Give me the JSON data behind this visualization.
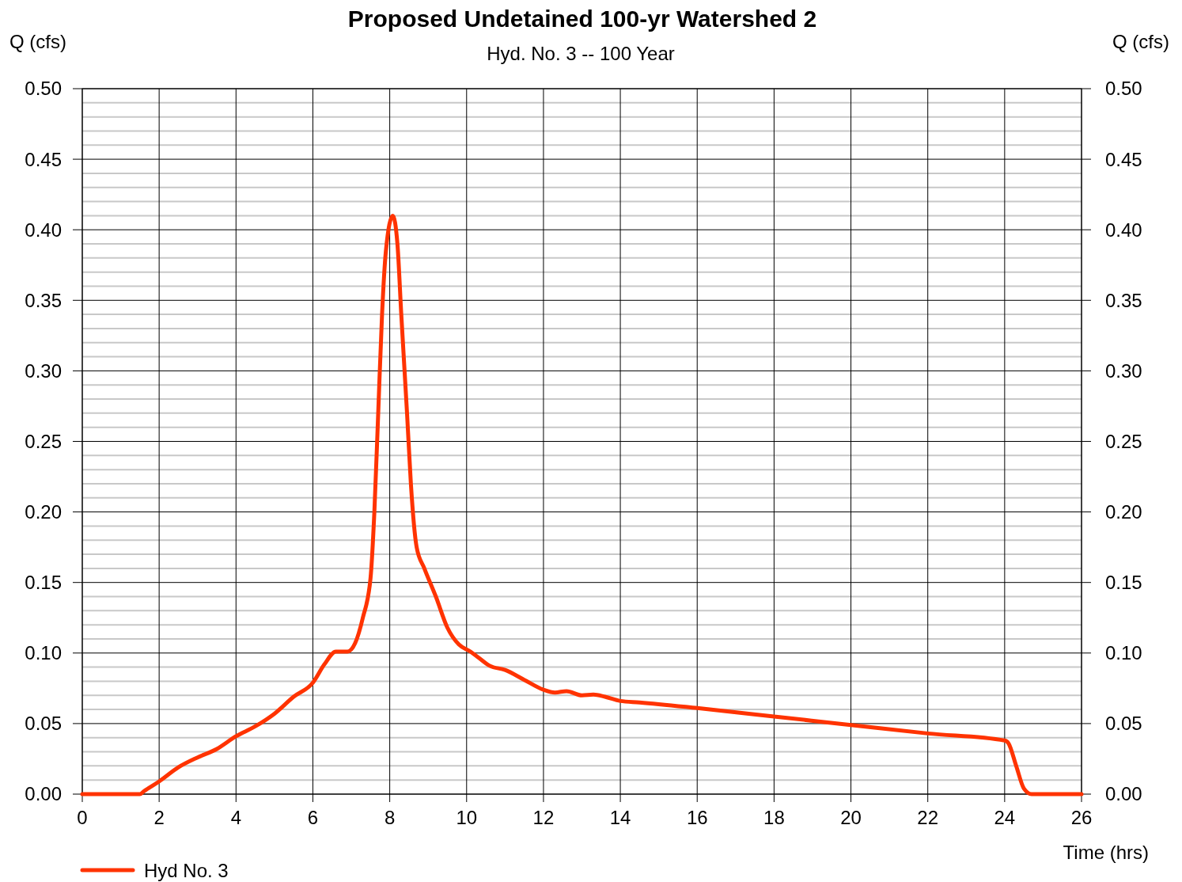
{
  "chart_data": {
    "type": "line",
    "title": "Proposed Undetained 100-yr Watershed 2",
    "subtitle": "Hyd. No. 3 -- 100 Year",
    "xlabel": "Time (hrs)",
    "ylabel": "Q (cfs)",
    "y2label": "Q (cfs)",
    "x": [
      0,
      1.5,
      1.6,
      2,
      2.5,
      3,
      3.5,
      4,
      4.5,
      5,
      5.5,
      6,
      6.3,
      6.6,
      6.9,
      7.1,
      7.3,
      7.5,
      7.6,
      7.7,
      7.8,
      7.9,
      8.08,
      8.2,
      8.3,
      8.45,
      8.55,
      8.7,
      8.9,
      9.2,
      9.5,
      9.8,
      10.1,
      10.3,
      10.6,
      11,
      11.5,
      12,
      12.3,
      12.6,
      13,
      13.3,
      13.6,
      14,
      14.5,
      16,
      18,
      20,
      22,
      24,
      24.1,
      24.3,
      24.5,
      24.7,
      26
    ],
    "series": [
      {
        "name": "Hyd No. 3",
        "color": "#ff3300",
        "values": [
          0,
          0,
          0.002,
          0.009,
          0.019,
          0.026,
          0.032,
          0.041,
          0.048,
          0.057,
          0.069,
          0.079,
          0.092,
          0.101,
          0.101,
          0.107,
          0.125,
          0.153,
          0.2,
          0.27,
          0.34,
          0.385,
          0.41,
          0.39,
          0.34,
          0.27,
          0.22,
          0.175,
          0.16,
          0.14,
          0.118,
          0.106,
          0.101,
          0.097,
          0.091,
          0.088,
          0.081,
          0.074,
          0.072,
          0.073,
          0.07,
          0.0705,
          0.069,
          0.066,
          0.065,
          0.061,
          0.055,
          0.049,
          0.043,
          0.038,
          0.036,
          0.02,
          0.004,
          0,
          0
        ]
      }
    ],
    "xlim": [
      0,
      26
    ],
    "xticks": [
      0,
      2,
      4,
      6,
      8,
      10,
      12,
      14,
      16,
      18,
      20,
      22,
      24,
      26
    ],
    "ylim": [
      0,
      0.5
    ],
    "yticks": [
      {
        "value": 0,
        "label": "0.00"
      },
      {
        "value": 0.01,
        "label": null
      },
      {
        "value": 0.02,
        "label": null
      },
      {
        "value": 0.03,
        "label": null
      },
      {
        "value": 0.04,
        "label": null
      },
      {
        "value": 0.05,
        "label": "0.05"
      },
      {
        "value": 0.06,
        "label": null
      },
      {
        "value": 0.07,
        "label": null
      },
      {
        "value": 0.08,
        "label": null
      },
      {
        "value": 0.09,
        "label": null
      },
      {
        "value": 0.1,
        "label": "0.10"
      },
      {
        "value": 0.11,
        "label": null
      },
      {
        "value": 0.12,
        "label": null
      },
      {
        "value": 0.13,
        "label": null
      },
      {
        "value": 0.14,
        "label": null
      },
      {
        "value": 0.15,
        "label": "0.15"
      },
      {
        "value": 0.16,
        "label": null
      },
      {
        "value": 0.17,
        "label": null
      },
      {
        "value": 0.18,
        "label": null
      },
      {
        "value": 0.19,
        "label": null
      },
      {
        "value": 0.2,
        "label": "0.20"
      },
      {
        "value": 0.21,
        "label": null
      },
      {
        "value": 0.22,
        "label": null
      },
      {
        "value": 0.23,
        "label": null
      },
      {
        "value": 0.24,
        "label": null
      },
      {
        "value": 0.25,
        "label": "0.25"
      },
      {
        "value": 0.26,
        "label": null
      },
      {
        "value": 0.27,
        "label": null
      },
      {
        "value": 0.28,
        "label": null
      },
      {
        "value": 0.29,
        "label": null
      },
      {
        "value": 0.3,
        "label": "0.30"
      },
      {
        "value": 0.31,
        "label": null
      },
      {
        "value": 0.32,
        "label": null
      },
      {
        "value": 0.33,
        "label": null
      },
      {
        "value": 0.34,
        "label": null
      },
      {
        "value": 0.35,
        "label": "0.35"
      },
      {
        "value": 0.36,
        "label": null
      },
      {
        "value": 0.37,
        "label": null
      },
      {
        "value": 0.38,
        "label": null
      },
      {
        "value": 0.39,
        "label": null
      },
      {
        "value": 0.4,
        "label": "0.40"
      },
      {
        "value": 0.41,
        "label": null
      },
      {
        "value": 0.42,
        "label": null
      },
      {
        "value": 0.43,
        "label": null
      },
      {
        "value": 0.44,
        "label": null
      },
      {
        "value": 0.45,
        "label": "0.45"
      },
      {
        "value": 0.46,
        "label": null
      },
      {
        "value": 0.47,
        "label": null
      },
      {
        "value": 0.48,
        "label": null
      },
      {
        "value": 0.49,
        "label": null
      },
      {
        "value": 0.5,
        "label": "0.50"
      }
    ],
    "y2lim": [
      0,
      0.5
    ],
    "y2ticks": [
      {
        "value": 0,
        "label": "0.00"
      },
      {
        "value": 0.05,
        "label": "0.05"
      },
      {
        "value": 0.1,
        "label": "0.10"
      },
      {
        "value": 0.15,
        "label": "0.15"
      },
      {
        "value": 0.2,
        "label": "0.20"
      },
      {
        "value": 0.25,
        "label": "0.25"
      },
      {
        "value": 0.3,
        "label": "0.30"
      },
      {
        "value": 0.35,
        "label": "0.35"
      },
      {
        "value": 0.4,
        "label": "0.40"
      },
      {
        "value": 0.45,
        "label": "0.45"
      },
      {
        "value": 0.5,
        "label": "0.50"
      }
    ],
    "grid": true,
    "legend": "bottom left",
    "marker": "none",
    "line_style": "solid"
  }
}
